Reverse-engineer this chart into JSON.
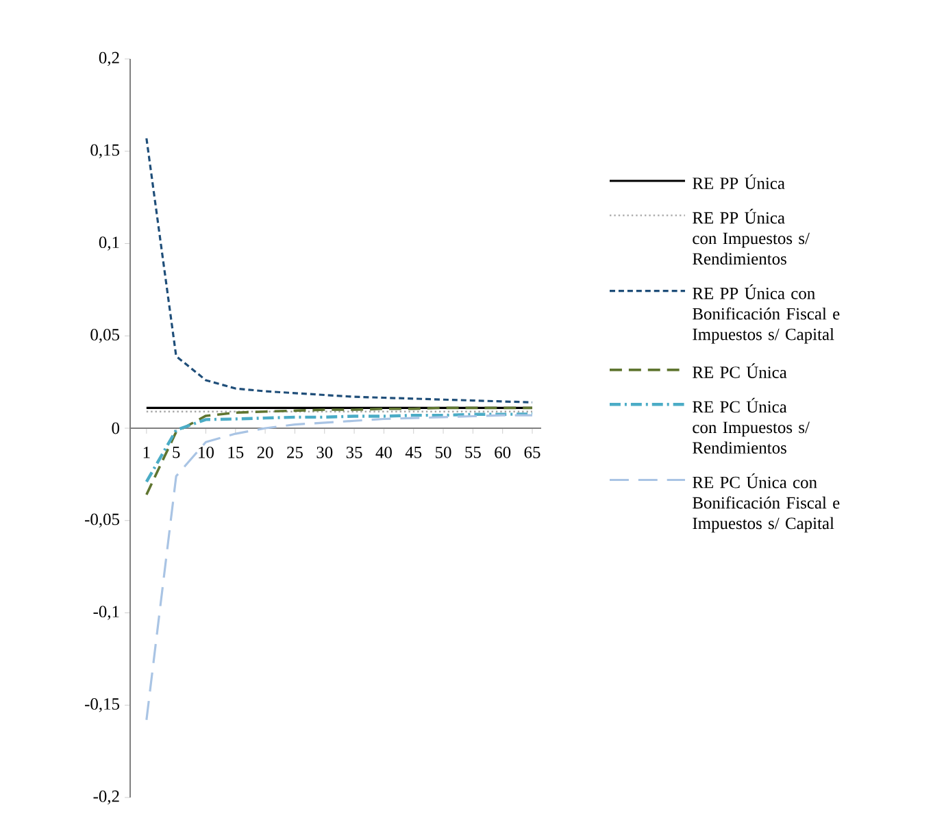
{
  "chart_data": {
    "type": "line",
    "categories": [
      "1",
      "5",
      "10",
      "15",
      "20",
      "25",
      "30",
      "35",
      "40",
      "45",
      "50",
      "55",
      "60",
      "65"
    ],
    "ylim": [
      -0.2,
      0.2
    ],
    "yticks": [
      {
        "value": -0.2,
        "label": "-0,2"
      },
      {
        "value": -0.15,
        "label": "-0,15"
      },
      {
        "value": -0.1,
        "label": "-0,1"
      },
      {
        "value": -0.05,
        "label": "-0,05"
      },
      0,
      {
        "value": 0.05,
        "label": "0,05"
      },
      {
        "value": 0.1,
        "label": "0,1"
      },
      {
        "value": 0.15,
        "label": "0,15"
      },
      {
        "value": 0.2,
        "label": "0,2"
      }
    ],
    "legend": "right",
    "series": [
      {
        "name": "RE PP Única",
        "color": "#000000",
        "line_style": "solid",
        "values": [
          0.011,
          0.011,
          0.011,
          0.011,
          0.011,
          0.011,
          0.011,
          0.011,
          0.011,
          0.011,
          0.011,
          0.011,
          0.011,
          0.011
        ]
      },
      {
        "name": "RE PP Única con Impuestos s/ Rendimientos",
        "color": "#a6a6a6",
        "line_style": "dotted",
        "values": [
          0.009,
          0.009,
          0.009,
          0.009,
          0.009,
          0.009,
          0.009,
          0.009,
          0.009,
          0.009,
          0.009,
          0.009,
          0.009,
          0.009
        ]
      },
      {
        "name": "RE PP Única con Bonificación Fiscal e Impuestos s/ Capital",
        "color": "#1f4e79",
        "line_style": "dashed",
        "values": [
          0.157,
          0.039,
          0.026,
          0.0215,
          0.02,
          0.019,
          0.018,
          0.017,
          0.0165,
          0.016,
          0.0155,
          0.015,
          0.0145,
          0.014
        ]
      },
      {
        "name": "RE PC Única",
        "color": "#5f7530",
        "line_style": "longdashed",
        "values": [
          -0.036,
          -0.002,
          0.0067,
          0.0084,
          0.009,
          0.0095,
          0.01,
          0.01,
          0.0105,
          0.0105,
          0.011,
          0.011,
          0.011,
          0.011
        ]
      },
      {
        "name": "RE PC Única con Impuestos s/ Rendimientos",
        "color": "#4bacc6",
        "line_style": "dashdot",
        "values": [
          -0.029,
          -0.001,
          0.0047,
          0.005,
          0.0055,
          0.006,
          0.006,
          0.0065,
          0.0065,
          0.007,
          0.007,
          0.0075,
          0.0075,
          0.0077
        ]
      },
      {
        "name": "RE PC Única con Bonificación Fiscal e Impuestos s/ Capital",
        "color": "#a9c4e4",
        "line_style": "loosedashed",
        "values": [
          -0.158,
          -0.026,
          -0.0075,
          -0.003,
          0.0,
          0.002,
          0.003,
          0.004,
          0.005,
          0.0055,
          0.006,
          0.0065,
          0.007,
          0.007
        ]
      }
    ]
  }
}
